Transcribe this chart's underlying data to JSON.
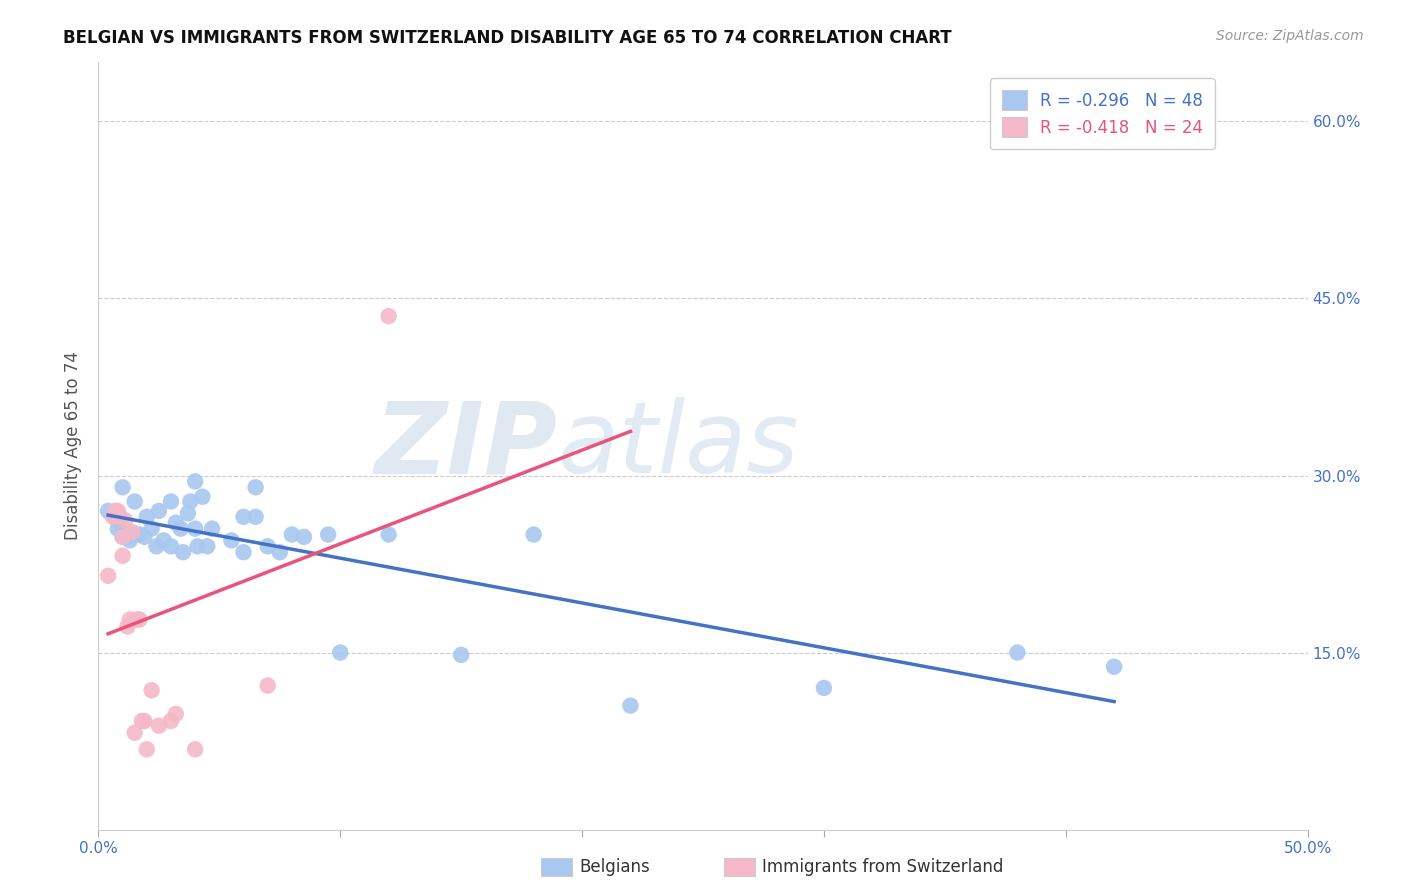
{
  "title": "BELGIAN VS IMMIGRANTS FROM SWITZERLAND DISABILITY AGE 65 TO 74 CORRELATION CHART",
  "source": "Source: ZipAtlas.com",
  "ylabel": "Disability Age 65 to 74",
  "belgian_R": -0.296,
  "belgian_N": 48,
  "swiss_R": -0.418,
  "swiss_N": 24,
  "belgian_color": "#a8c8f0",
  "swiss_color": "#f5b8c8",
  "belgian_line_color": "#4472c4",
  "swiss_line_color": "#e8547a",
  "watermark_zip": "ZIP",
  "watermark_atlas": "atlas",
  "xlim": [
    0.0,
    0.5
  ],
  "ylim": [
    0.0,
    0.65
  ],
  "x_ticks": [
    0.0,
    0.1,
    0.2,
    0.3,
    0.4,
    0.5
  ],
  "x_labels": [
    "0.0%",
    "",
    "",
    "",
    "",
    "50.0%"
  ],
  "y_ticks": [
    0.0,
    0.15,
    0.3,
    0.45,
    0.6
  ],
  "y_labels_right": [
    "",
    "15.0%",
    "30.0%",
    "45.0%",
    "60.0%"
  ],
  "belgian_x": [
    0.004,
    0.007,
    0.008,
    0.009,
    0.01,
    0.01,
    0.012,
    0.013,
    0.015,
    0.015,
    0.017,
    0.019,
    0.02,
    0.022,
    0.024,
    0.025,
    0.027,
    0.03,
    0.03,
    0.032,
    0.034,
    0.035,
    0.037,
    0.038,
    0.04,
    0.04,
    0.041,
    0.043,
    0.045,
    0.047,
    0.055,
    0.06,
    0.06,
    0.065,
    0.065,
    0.07,
    0.075,
    0.08,
    0.085,
    0.095,
    0.1,
    0.12,
    0.15,
    0.18,
    0.22,
    0.3,
    0.38,
    0.42
  ],
  "belgian_y": [
    0.27,
    0.265,
    0.255,
    0.26,
    0.248,
    0.29,
    0.248,
    0.245,
    0.25,
    0.278,
    0.25,
    0.248,
    0.265,
    0.255,
    0.24,
    0.27,
    0.245,
    0.24,
    0.278,
    0.26,
    0.255,
    0.235,
    0.268,
    0.278,
    0.295,
    0.255,
    0.24,
    0.282,
    0.24,
    0.255,
    0.245,
    0.265,
    0.235,
    0.29,
    0.265,
    0.24,
    0.235,
    0.25,
    0.248,
    0.25,
    0.15,
    0.25,
    0.148,
    0.25,
    0.105,
    0.12,
    0.15,
    0.138
  ],
  "swiss_x": [
    0.004,
    0.006,
    0.007,
    0.008,
    0.009,
    0.01,
    0.01,
    0.011,
    0.012,
    0.013,
    0.014,
    0.015,
    0.016,
    0.017,
    0.018,
    0.019,
    0.02,
    0.022,
    0.025,
    0.03,
    0.032,
    0.04,
    0.07,
    0.12
  ],
  "swiss_y": [
    0.215,
    0.265,
    0.27,
    0.27,
    0.265,
    0.248,
    0.232,
    0.262,
    0.172,
    0.178,
    0.252,
    0.082,
    0.178,
    0.178,
    0.092,
    0.092,
    0.068,
    0.118,
    0.088,
    0.092,
    0.098,
    0.068,
    0.122,
    0.435
  ],
  "bel_line_x0": 0.004,
  "bel_line_x1": 0.42,
  "sw_line_x0": 0.004,
  "sw_line_x1": 0.22,
  "legend_label1": "R = -0.296   N = 48",
  "legend_label2": "R = -0.418   N = 24",
  "bottom_label1": "Belgians",
  "bottom_label2": "Immigrants from Switzerland"
}
